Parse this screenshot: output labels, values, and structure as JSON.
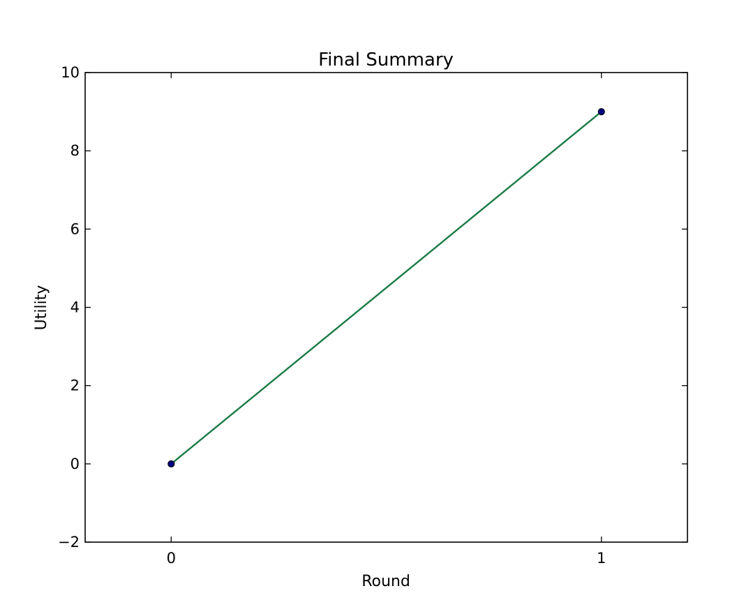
{
  "chart_data": {
    "type": "line",
    "title": "Final Summary",
    "xlabel": "Round",
    "ylabel": "Utility",
    "xlim": [
      -0.2,
      1.2
    ],
    "ylim": [
      -2,
      10
    ],
    "x_ticks": [
      {
        "value": 0,
        "label": "0"
      },
      {
        "value": 1,
        "label": "1"
      }
    ],
    "y_ticks": [
      {
        "value": -2,
        "label": "−2"
      },
      {
        "value": 0,
        "label": "0"
      },
      {
        "value": 2,
        "label": "2"
      },
      {
        "value": 4,
        "label": "4"
      },
      {
        "value": 6,
        "label": "6"
      },
      {
        "value": 8,
        "label": "8"
      },
      {
        "value": 10,
        "label": "10"
      }
    ],
    "grid": false,
    "legend": "none",
    "series": [
      {
        "x": [
          0,
          1
        ],
        "y": [
          0,
          9
        ],
        "line_color": "#1a7a45",
        "marker_color": "#000080"
      }
    ]
  }
}
